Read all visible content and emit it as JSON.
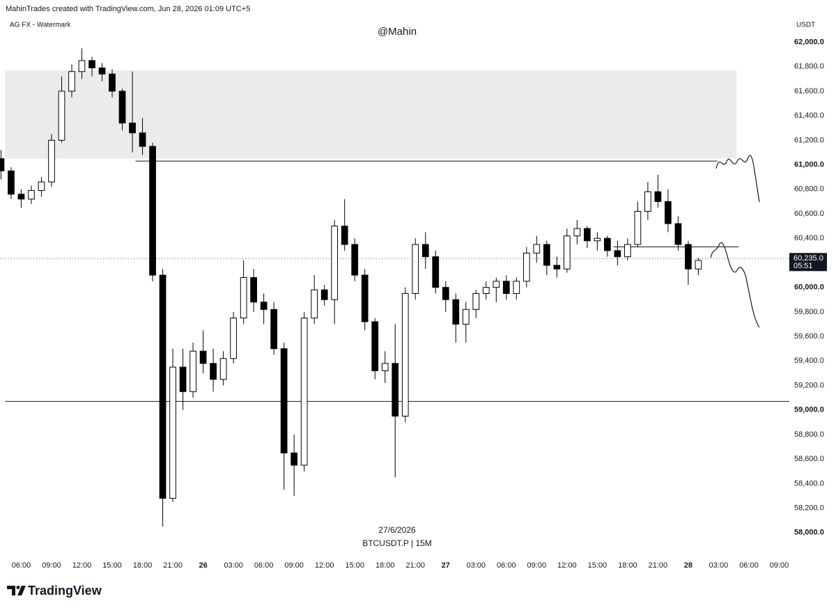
{
  "header": "MahinTrades created with TradingView.com, Jun 28, 2026 01:09 UTC+5",
  "watermark_label": "AG FX - Watermark",
  "logo": "TradingView",
  "chart_data": {
    "type": "candlestick",
    "title": "@Mahin",
    "currency": "USDT",
    "date_label": "27/6/2026",
    "symbol": "BTCUSDT.P | 15M",
    "up_color": "#ffffff",
    "down_color": "#000000",
    "x": [
      4,
      5,
      6,
      7,
      8,
      9,
      10,
      11,
      12,
      13,
      14,
      15,
      16,
      17,
      18,
      19,
      20,
      21,
      22,
      23,
      24,
      25,
      26,
      27,
      28,
      29,
      30,
      31,
      32,
      33,
      34,
      35,
      36,
      37,
      38,
      39,
      40,
      41,
      42,
      43,
      44,
      45,
      46,
      47,
      48,
      49,
      50,
      51,
      52,
      53,
      54,
      55,
      56,
      57,
      58,
      59,
      60,
      61,
      62,
      63,
      64,
      65,
      66,
      67,
      68,
      69,
      70,
      71,
      72,
      73
    ],
    "open": [
      61050,
      60950,
      60760,
      60720,
      60790,
      60860,
      61200,
      61600,
      61760,
      61850,
      61790,
      61740,
      61600,
      61340,
      61260,
      61150,
      60100,
      58280,
      59350,
      59150,
      59480,
      59380,
      59250,
      59420,
      59750,
      60080,
      59880,
      59820,
      59500,
      58650,
      58550,
      59750,
      59980,
      59900,
      60500,
      60350,
      60100,
      59720,
      59320,
      59380,
      58950,
      59950,
      60350,
      60250,
      60000,
      59900,
      59700,
      59820,
      59950,
      60000,
      60050,
      59950,
      60050,
      60280,
      60350,
      60180,
      60150,
      60420,
      60480,
      60380,
      60400,
      60300,
      60250,
      60350,
      60620,
      60780,
      60700,
      60520,
      60350,
      60150
    ],
    "high": [
      61120,
      60980,
      60800,
      60830,
      60900,
      61250,
      61720,
      61820,
      61950,
      61880,
      61830,
      61780,
      61620,
      61760,
      61380,
      61180,
      60150,
      59500,
      59500,
      59550,
      59650,
      59500,
      59480,
      59800,
      60220,
      60150,
      59950,
      59880,
      59550,
      58800,
      59800,
      60100,
      60020,
      60550,
      60720,
      60400,
      60150,
      59750,
      59480,
      59700,
      60000,
      60400,
      60450,
      60300,
      60050,
      59950,
      59880,
      59980,
      60050,
      60080,
      60100,
      60080,
      60330,
      60420,
      60380,
      60250,
      60480,
      60550,
      60500,
      60450,
      60420,
      60380,
      60400,
      60700,
      60860,
      60920,
      60800,
      60580,
      60380,
      60240
    ],
    "low": [
      60880,
      60720,
      60650,
      60680,
      60740,
      60820,
      61180,
      61550,
      61700,
      61720,
      61680,
      61550,
      61280,
      61100,
      61080,
      60050,
      58050,
      58250,
      59000,
      59100,
      59300,
      59150,
      59200,
      59380,
      59700,
      59800,
      59700,
      59450,
      58350,
      58300,
      58500,
      59700,
      59850,
      59700,
      60300,
      60050,
      59650,
      59250,
      59220,
      58450,
      58900,
      59900,
      60150,
      59950,
      59800,
      59550,
      59550,
      59750,
      59900,
      59880,
      59900,
      59900,
      60000,
      60200,
      60100,
      60080,
      60120,
      60350,
      60320,
      60300,
      60250,
      60180,
      60220,
      60330,
      60550,
      60650,
      60450,
      60300,
      60020,
      60100
    ],
    "close": [
      60950,
      60760,
      60720,
      60790,
      60860,
      61200,
      61600,
      61760,
      61850,
      61790,
      61740,
      61600,
      61340,
      61260,
      61150,
      60100,
      58280,
      59350,
      59150,
      59480,
      59380,
      59250,
      59420,
      59750,
      60080,
      59880,
      59820,
      59500,
      58650,
      58550,
      59750,
      59980,
      59900,
      60500,
      60350,
      60100,
      59720,
      59320,
      59380,
      58950,
      59950,
      60350,
      60250,
      60000,
      59900,
      59700,
      59820,
      59950,
      60000,
      60050,
      59950,
      60050,
      60280,
      60350,
      60180,
      60150,
      60420,
      60480,
      60380,
      60400,
      60300,
      60250,
      60350,
      60620,
      60780,
      60700,
      60520,
      60350,
      60150,
      60220
    ],
    "xlim": [
      3.9,
      82
    ],
    "ylim": [
      57800,
      62230
    ],
    "xticks": [
      {
        "value": 6,
        "label": "06:00"
      },
      {
        "value": 9,
        "label": "09:00"
      },
      {
        "value": 12,
        "label": "12:00"
      },
      {
        "value": 15,
        "label": "15:00"
      },
      {
        "value": 18,
        "label": "18:00"
      },
      {
        "value": 21,
        "label": "21:00"
      },
      {
        "value": 24,
        "label": "26"
      },
      {
        "value": 27,
        "label": "03:00"
      },
      {
        "value": 30,
        "label": "06:00"
      },
      {
        "value": 33,
        "label": "09:00"
      },
      {
        "value": 36,
        "label": "12:00"
      },
      {
        "value": 39,
        "label": "15:00"
      },
      {
        "value": 42,
        "label": "18:00"
      },
      {
        "value": 45,
        "label": "21:00"
      },
      {
        "value": 48,
        "label": "27"
      },
      {
        "value": 51,
        "label": "03:00"
      },
      {
        "value": 54,
        "label": "06:00"
      },
      {
        "value": 57,
        "label": "09:00"
      },
      {
        "value": 60,
        "label": "12:00"
      },
      {
        "value": 63,
        "label": "15:00"
      },
      {
        "value": 66,
        "label": "18:00"
      },
      {
        "value": 69,
        "label": "21:00"
      },
      {
        "value": 72,
        "label": "28"
      },
      {
        "value": 75,
        "label": "03:00"
      },
      {
        "value": 78,
        "label": "06:00"
      },
      {
        "value": 81,
        "label": "09:00"
      }
    ],
    "yticks": [
      {
        "value": 58000,
        "label": "58,000.0"
      },
      {
        "value": 58200,
        "label": "58,200.0"
      },
      {
        "value": 58400,
        "label": "58,400.0"
      },
      {
        "value": 58600,
        "label": "58,600.0"
      },
      {
        "value": 58800,
        "label": "58,800.0"
      },
      {
        "value": 59000,
        "label": "59,000.0"
      },
      {
        "value": 59200,
        "label": "59,200.0"
      },
      {
        "value": 59400,
        "label": "59,400.0"
      },
      {
        "value": 59600,
        "label": "59,600.0"
      },
      {
        "value": 59800,
        "label": "59,800.0"
      },
      {
        "value": 60000,
        "label": "60,000.0"
      },
      {
        "value": 60200,
        "label": "60,200.0"
      },
      {
        "value": 60400,
        "label": "60,400.0"
      },
      {
        "value": 60600,
        "label": "60,600.0"
      },
      {
        "value": 60800,
        "label": "60,800.0"
      },
      {
        "value": 61000,
        "label": "61,000.0"
      },
      {
        "value": 61200,
        "label": "61,200.0"
      },
      {
        "value": 61400,
        "label": "61,400.0"
      },
      {
        "value": 61600,
        "label": "61,600.0"
      },
      {
        "value": 61800,
        "label": "61,800.0"
      },
      {
        "value": 62000,
        "label": "62,000.0"
      }
    ],
    "last_price": {
      "value": 60235,
      "label": "60,235.0"
    },
    "countdown": "05:51",
    "zone": {
      "from": 4.4,
      "to": 76.8,
      "low": 61050,
      "high": 61770,
      "color": "#ebebeb"
    },
    "levels": [
      {
        "price": 61030,
        "from": 17.3,
        "to": 74.9
      },
      {
        "price": 60330,
        "from": 64.6,
        "to": 77
      },
      {
        "price": 59070,
        "from": 4.4,
        "to": 82
      }
    ]
  }
}
